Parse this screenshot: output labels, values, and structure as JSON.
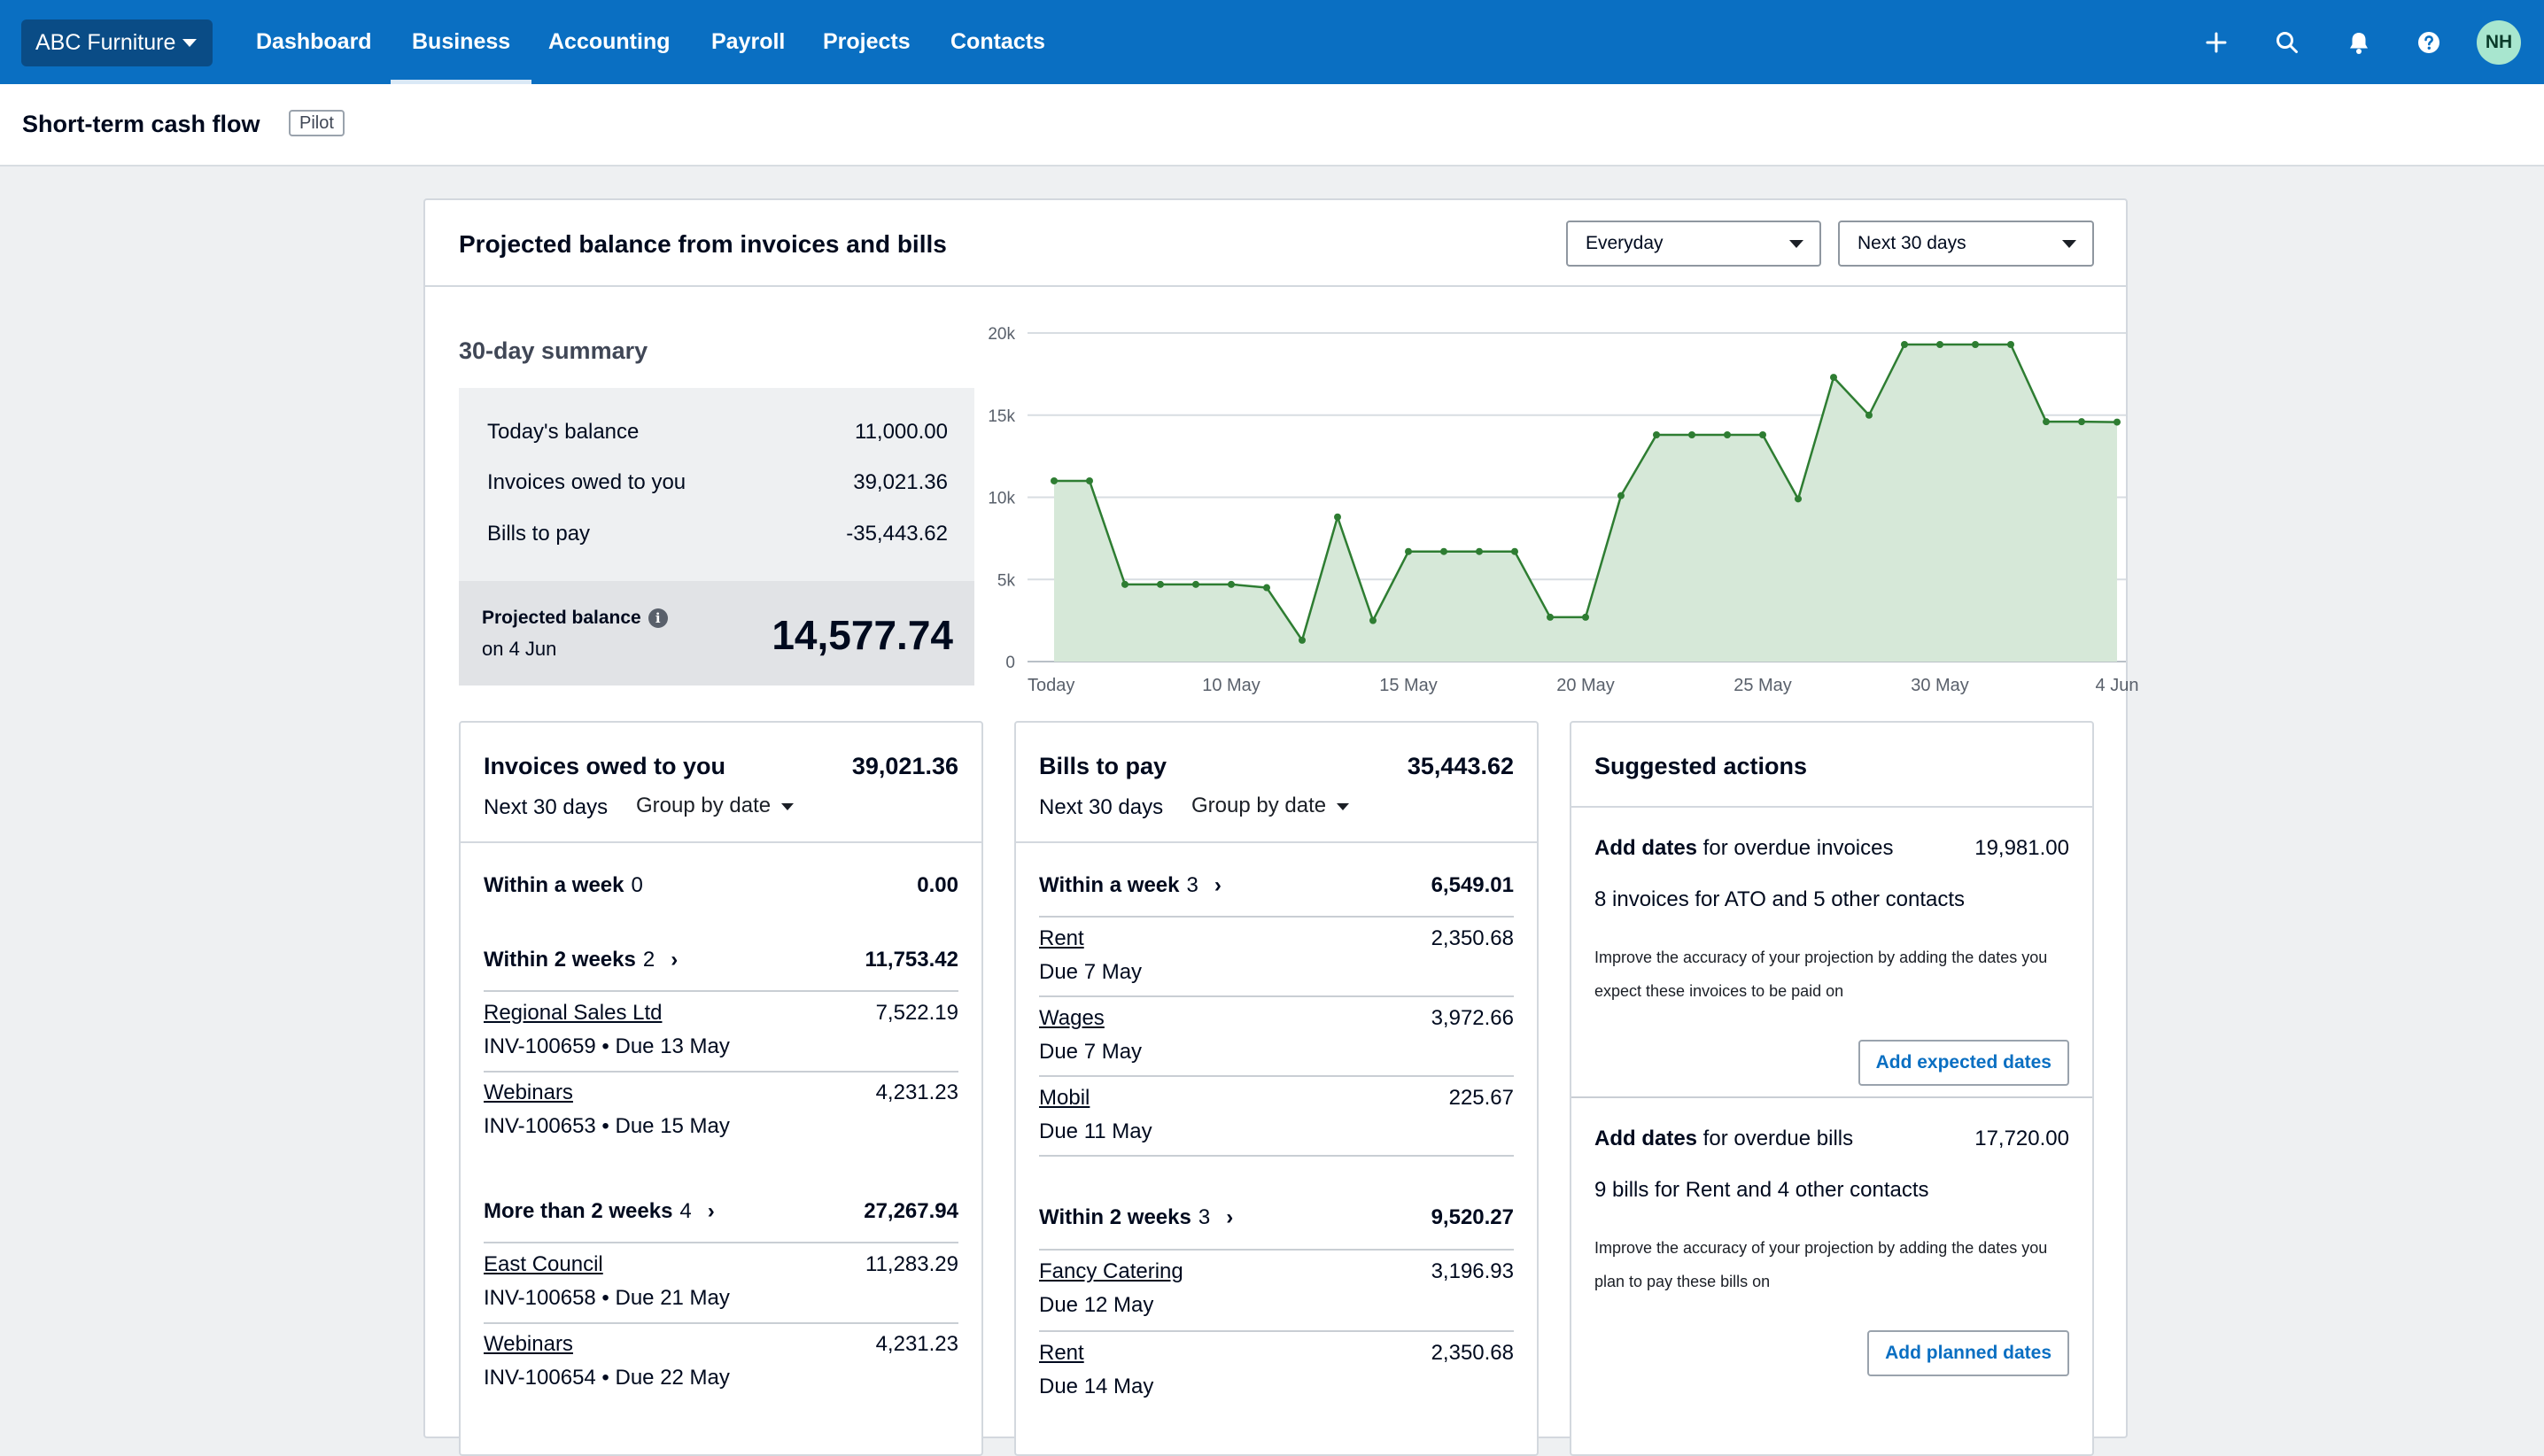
{
  "topnav": {
    "org_name": "ABC Furniture",
    "items": [
      {
        "label": "Dashboard",
        "active": false
      },
      {
        "label": "Business",
        "active": true
      },
      {
        "label": "Accounting",
        "active": false
      },
      {
        "label": "Payroll",
        "active": false
      },
      {
        "label": "Projects",
        "active": false
      },
      {
        "label": "Contacts",
        "active": false
      }
    ],
    "icons": [
      "plus-icon",
      "search-icon",
      "bell-icon",
      "help-icon"
    ],
    "avatar_initials": "NH",
    "colors": {
      "bar": "#0a6fc2",
      "org_button": "#0a4c86",
      "avatar": "#a8e6cf"
    }
  },
  "page": {
    "title": "Short-term cash flow",
    "badge": "Pilot"
  },
  "card": {
    "title": "Projected balance from invoices and bills",
    "account_select": "Everyday",
    "period_select": "Next 30 days"
  },
  "summary": {
    "title": "30-day summary",
    "rows": [
      {
        "label": "Today's balance",
        "value": "11,000.00"
      },
      {
        "label": "Invoices owed to you",
        "value": "39,021.36"
      },
      {
        "label": "Bills to pay",
        "value": "-35,443.62"
      }
    ],
    "projected_label": "Projected balance",
    "projected_date": "on 4 Jun",
    "projected_value": "14,577.74"
  },
  "chart_data": {
    "type": "area",
    "x": [
      "Today",
      "6 May",
      "7 May",
      "8 May",
      "9 May",
      "10 May",
      "11 May",
      "12 May",
      "13 May",
      "14 May",
      "15 May",
      "16 May",
      "17 May",
      "18 May",
      "19 May",
      "20 May",
      "21 May",
      "22 May",
      "23 May",
      "24 May",
      "25 May",
      "26 May",
      "27 May",
      "28 May",
      "29 May",
      "30 May",
      "31 May",
      "1 Jun",
      "2 Jun",
      "3 Jun",
      "4 Jun"
    ],
    "tick_labels": [
      "Today",
      "10 May",
      "15 May",
      "20 May",
      "25 May",
      "30 May",
      "4 Jun"
    ],
    "y_ticks": [
      "0",
      "5k",
      "10k",
      "15k",
      "20k"
    ],
    "values": [
      11000,
      11000,
      4700,
      4700,
      4700,
      4700,
      4500,
      1300,
      8800,
      2500,
      6700,
      6700,
      6700,
      6700,
      2700,
      2700,
      10100,
      13800,
      13800,
      13800,
      13800,
      9900,
      17300,
      15000,
      19300,
      19300,
      19300,
      19300,
      14600,
      14600,
      14578
    ],
    "ylim": [
      0,
      20000
    ],
    "grid": true,
    "colors": {
      "line": "#2e7d32",
      "fill": "#d6e8d8",
      "grid": "#d8dde2"
    }
  },
  "invoices": {
    "title": "Invoices owed to you",
    "total": "39,021.36",
    "period": "Next 30 days",
    "group_by": "Group by date",
    "groups": [
      {
        "name": "Within a week",
        "count": "0",
        "amount": "0.00",
        "items": []
      },
      {
        "name": "Within 2 weeks",
        "count": "2",
        "amount": "11,753.42",
        "items": [
          {
            "name": "Regional Sales Ltd",
            "sub": "INV-100659 • Due 13 May",
            "amount": "7,522.19"
          },
          {
            "name": "Webinars",
            "sub": "INV-100653 • Due 15 May",
            "amount": "4,231.23"
          }
        ]
      },
      {
        "name": "More than 2 weeks",
        "count": "4",
        "amount": "27,267.94",
        "items": [
          {
            "name": "East Council",
            "sub": "INV-100658 • Due 21 May",
            "amount": "11,283.29"
          },
          {
            "name": "Webinars",
            "sub": "INV-100654 • Due 22 May",
            "amount": "4,231.23"
          }
        ]
      }
    ]
  },
  "bills": {
    "title": "Bills to pay",
    "total": "35,443.62",
    "period": "Next 30 days",
    "group_by": "Group by date",
    "groups": [
      {
        "name": "Within a week",
        "count": "3",
        "amount": "6,549.01",
        "items": [
          {
            "name": "Rent",
            "sub": "Due 7 May",
            "amount": "2,350.68"
          },
          {
            "name": "Wages",
            "sub": "Due 7 May",
            "amount": "3,972.66"
          },
          {
            "name": "Mobil",
            "sub": "Due 11 May",
            "amount": "225.67"
          }
        ]
      },
      {
        "name": "Within 2 weeks",
        "count": "3",
        "amount": "9,520.27",
        "items": [
          {
            "name": "Fancy Catering",
            "sub": "Due 12 May",
            "amount": "3,196.93"
          },
          {
            "name": "Rent",
            "sub": "Due 14 May",
            "amount": "2,350.68"
          }
        ]
      }
    ]
  },
  "suggested": {
    "title": "Suggested actions",
    "actions": [
      {
        "title_bold": "Add dates",
        "title_rest": " for overdue invoices",
        "amount": "19,981.00",
        "sub": "8 invoices for ATO and 5 other contacts",
        "desc": "Improve the accuracy of your projection by adding the dates you expect these invoices to be paid on",
        "button": "Add expected dates"
      },
      {
        "title_bold": "Add dates",
        "title_rest": " for overdue bills",
        "amount": "17,720.00",
        "sub": "9 bills for Rent and 4 other contacts",
        "desc": "Improve the accuracy of your projection by adding the dates you plan to pay these bills on",
        "button": "Add planned dates"
      }
    ]
  }
}
